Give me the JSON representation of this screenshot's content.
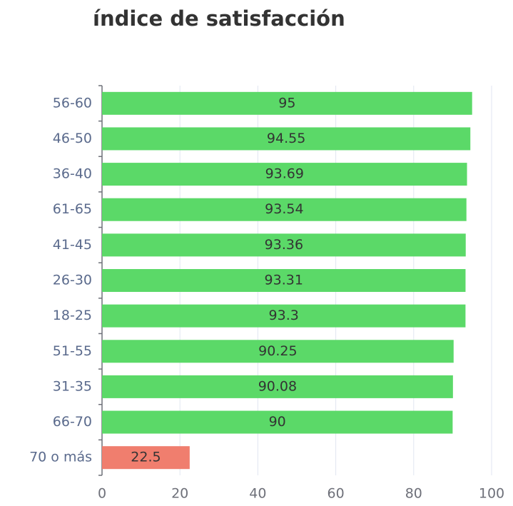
{
  "chart_data": {
    "type": "bar",
    "orientation": "horizontal",
    "title": "índice de satisfacción",
    "categories": [
      "56-60",
      "46-50",
      "36-40",
      "61-65",
      "41-45",
      "26-30",
      "18-25",
      "51-55",
      "31-35",
      "66-70",
      "70 o más"
    ],
    "values": [
      95,
      94.55,
      93.69,
      93.54,
      93.36,
      93.31,
      93.3,
      90.25,
      90.08,
      90,
      22.5
    ],
    "colors": [
      "#5bd968",
      "#5bd968",
      "#5bd968",
      "#5bd968",
      "#5bd968",
      "#5bd968",
      "#5bd968",
      "#5bd968",
      "#5bd968",
      "#5bd968",
      "#f07e6e"
    ],
    "xlim": [
      0,
      100
    ],
    "xticks": [
      0,
      20,
      40,
      60,
      80,
      100
    ],
    "grid": true
  }
}
